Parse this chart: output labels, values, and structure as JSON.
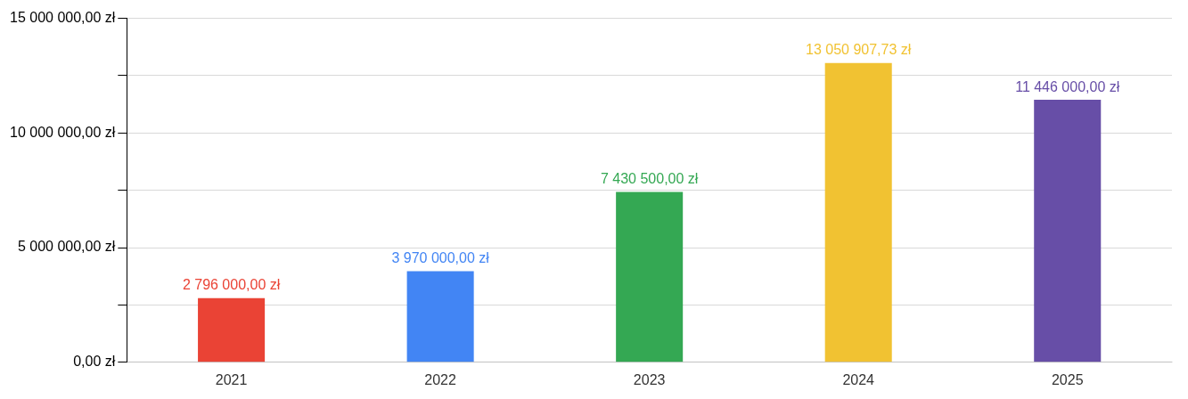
{
  "chart_data": {
    "type": "bar",
    "categories": [
      "2021",
      "2022",
      "2023",
      "2024",
      "2025"
    ],
    "values": [
      2796000,
      3970000,
      7430500,
      13050907.73,
      11446000
    ],
    "colors": [
      "#ea4335",
      "#4285f4",
      "#34a853",
      "#f1c232",
      "#674ea7"
    ],
    "value_labels": [
      "2 796 000,00 zł",
      "3 970 000,00 zł",
      "7 430 500,00 zł",
      "13 050 907,73 zł",
      "11 446 000,00 zł"
    ],
    "ylim": [
      0,
      15000000
    ],
    "yticks": [
      {
        "value": 0,
        "label": "0,00 zł"
      },
      {
        "value": 2500000,
        "label": null
      },
      {
        "value": 5000000,
        "label": "5 000 000,00 zł"
      },
      {
        "value": 7500000,
        "label": null
      },
      {
        "value": 10000000,
        "label": "10 000 000,00 zł"
      },
      {
        "value": 12500000,
        "label": null
      },
      {
        "value": 15000000,
        "label": "15 000 000,00 zł"
      }
    ],
    "grid": "y",
    "legend": false
  }
}
